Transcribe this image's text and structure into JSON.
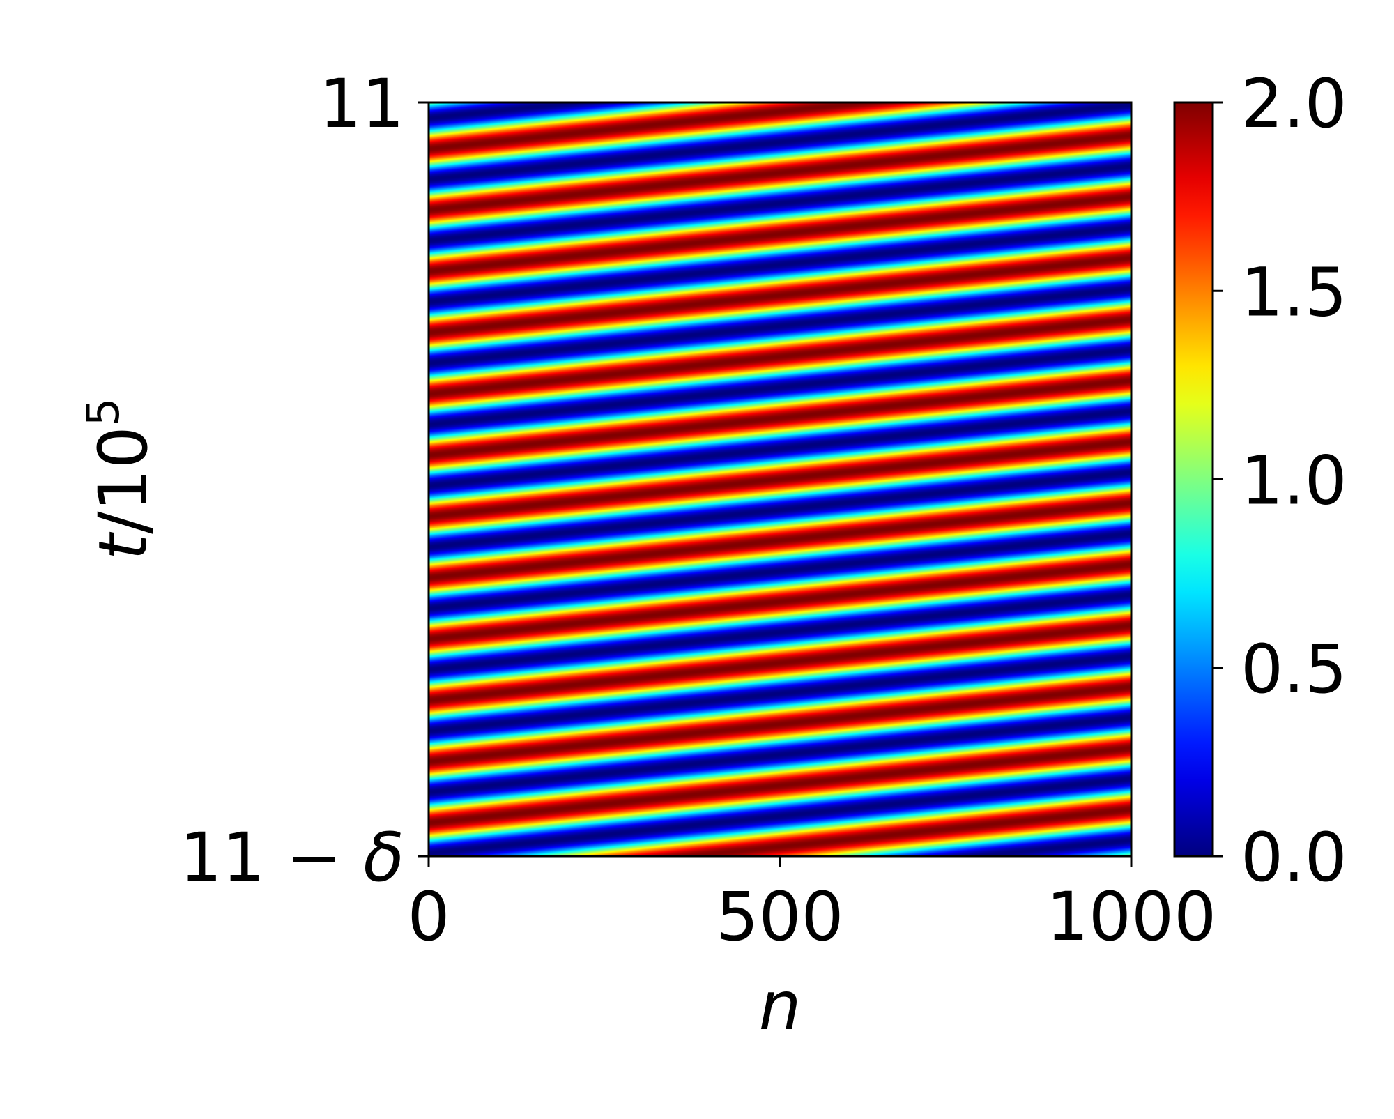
{
  "chart_data": {
    "type": "heatmap",
    "title": "",
    "xlabel": "n",
    "ylabel_var": "t",
    "ylabel_den": "/10",
    "ylabel_exp": "5",
    "xlim": [
      0,
      1000
    ],
    "x_ticks": [
      {
        "value": 0,
        "label": "0"
      },
      {
        "value": 500,
        "label": "500"
      },
      {
        "value": 1000,
        "label": "1000"
      }
    ],
    "y_ticks": [
      {
        "position": "top",
        "label": "11"
      },
      {
        "position": "bottom",
        "label_pre": "11 − ",
        "label_symbol": "δ"
      }
    ],
    "field": {
      "description_of_pattern": "diagonal traveling-wave stripes; value oscillates between 0 and 2",
      "min": 0,
      "max": 2,
      "stripe_periods_along_t": 12.3,
      "stripe_periods_along_n": 1.22,
      "phase_at_top_left": 0.25
    },
    "colorbar": {
      "colormap": "jet",
      "range": [
        0,
        2
      ],
      "ticks": [
        {
          "value": 0.0,
          "label": "0.0"
        },
        {
          "value": 0.5,
          "label": "0.5"
        },
        {
          "value": 1.0,
          "label": "1.0"
        },
        {
          "value": 1.5,
          "label": "1.5"
        },
        {
          "value": 2.0,
          "label": "2.0"
        }
      ]
    }
  }
}
